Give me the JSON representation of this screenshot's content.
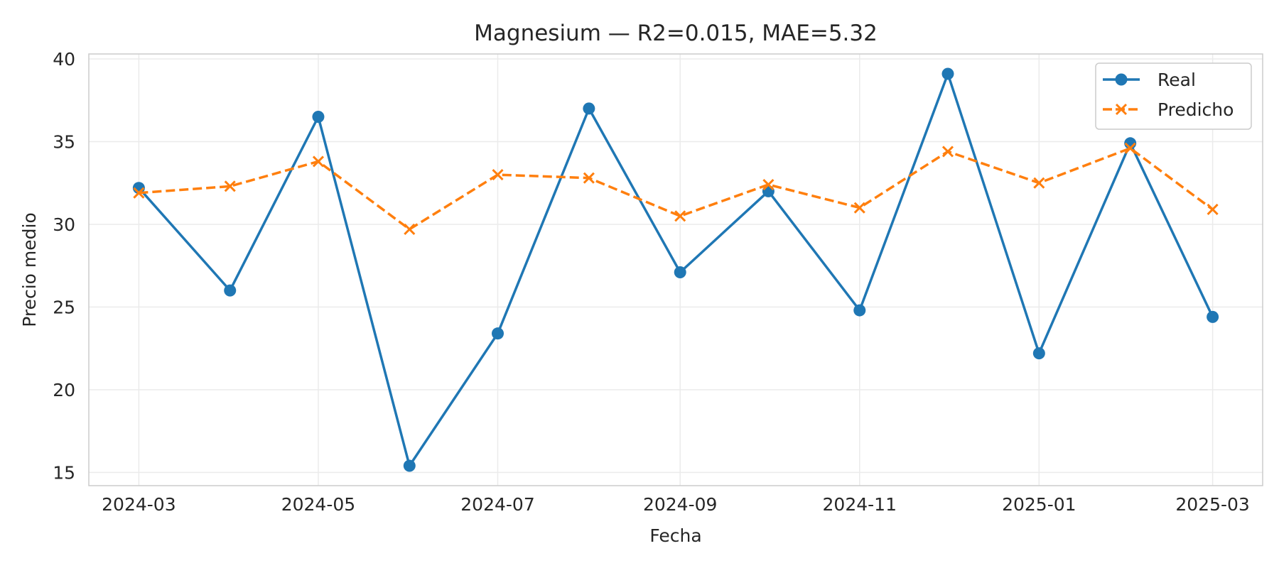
{
  "chart_data": {
    "type": "line",
    "title": "Magnesium — R2=0.015, MAE=5.32",
    "xlabel": "Fecha",
    "ylabel": "Precio medio",
    "x": [
      "2024-03-01",
      "2024-04-01",
      "2024-05-01",
      "2024-06-01",
      "2024-07-01",
      "2024-08-01",
      "2024-09-01",
      "2024-10-01",
      "2024-11-01",
      "2024-12-01",
      "2025-01-01",
      "2025-02-01",
      "2025-03-01"
    ],
    "x_ticks": [
      "2024-03",
      "2024-05",
      "2024-07",
      "2024-09",
      "2024-11",
      "2025-01",
      "2025-03"
    ],
    "y_ticks": [
      15,
      20,
      25,
      30,
      35,
      40
    ],
    "ylim": [
      14.2,
      40.3
    ],
    "xlim": [
      "2024-02-13",
      "2025-03-18"
    ],
    "grid": true,
    "legend_position": "top-right",
    "series": [
      {
        "name": "Real",
        "color": "#1f77b4",
        "marker": "circle",
        "line_style": "solid",
        "values": [
          32.2,
          26.0,
          36.5,
          15.4,
          23.4,
          37.0,
          27.1,
          32.0,
          24.8,
          39.1,
          22.2,
          34.9,
          24.4
        ]
      },
      {
        "name": "Predicho",
        "color": "#ff7f0e",
        "marker": "x",
        "line_style": "dashed",
        "values": [
          31.9,
          32.3,
          33.8,
          29.7,
          33.0,
          32.8,
          30.5,
          32.4,
          31.0,
          34.4,
          32.5,
          34.6,
          30.9
        ]
      }
    ]
  }
}
